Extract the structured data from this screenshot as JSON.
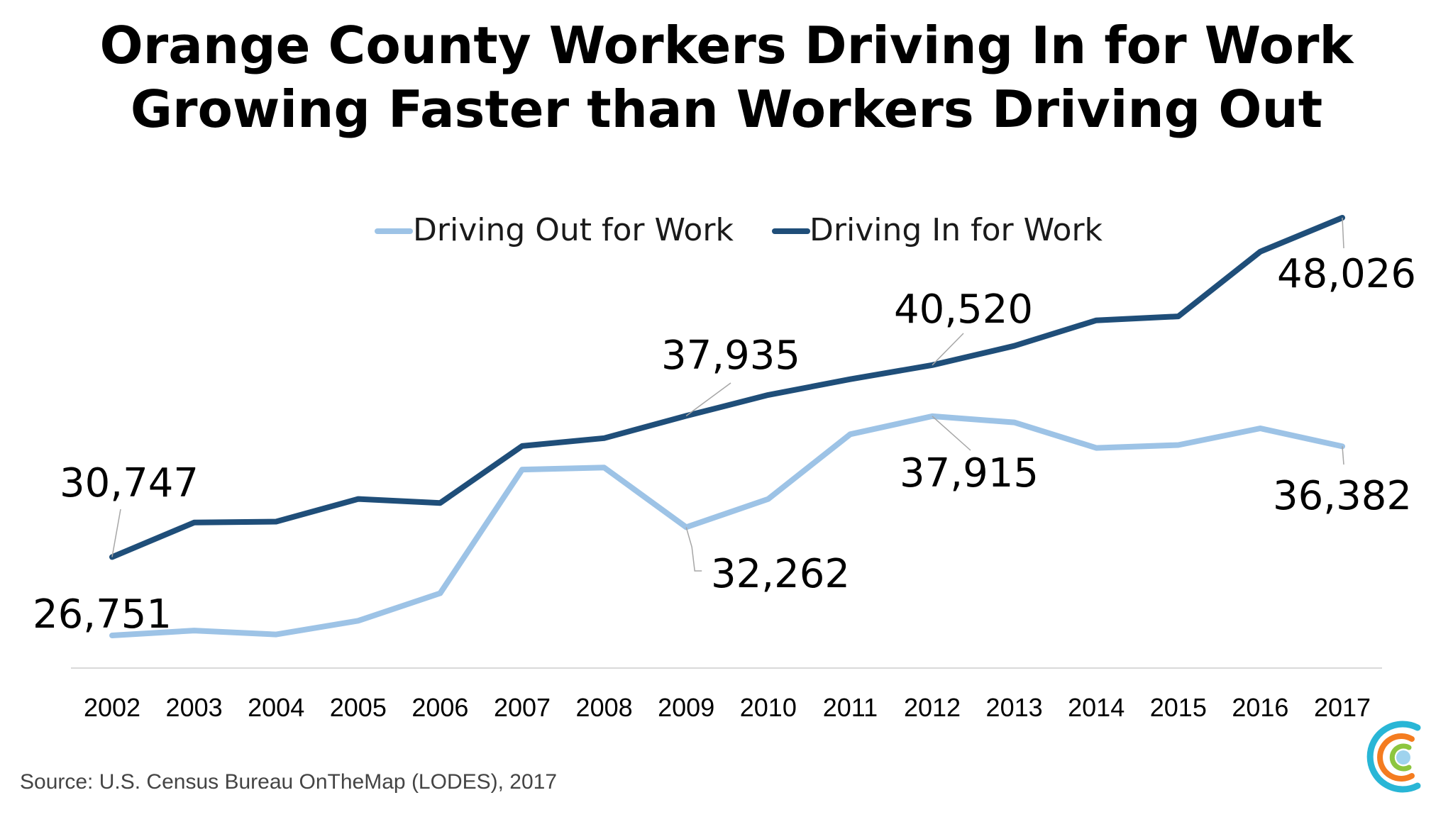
{
  "title_line1": "Orange County Workers Driving In for Work",
  "title_line2": "Growing Faster than Workers Driving Out",
  "source": "Source: U.S. Census Bureau OnTheMap (LODES), 2017",
  "colors": {
    "driving_out": "#9dc3e6",
    "driving_in": "#1f4e79",
    "axis": "#d9d9d9",
    "leader": "#a6a6a6"
  },
  "chart_data": {
    "type": "line",
    "categories": [
      "2002",
      "2003",
      "2004",
      "2005",
      "2006",
      "2007",
      "2008",
      "2009",
      "2010",
      "2011",
      "2012",
      "2013",
      "2014",
      "2015",
      "2016",
      "2017"
    ],
    "ylim": [
      22000,
      52000
    ],
    "grid": false,
    "legend_position": "top",
    "series": [
      {
        "name": "Driving Out for Work",
        "color": "#9dc3e6",
        "values": [
          26751,
          27000,
          26800,
          27500,
          28900,
          35200,
          35300,
          32262,
          33700,
          37000,
          37915,
          37600,
          36300,
          36450,
          37300,
          36382
        ]
      },
      {
        "name": "Driving In for Work",
        "color": "#1f4e79",
        "values": [
          30747,
          32500,
          32550,
          33700,
          33500,
          36400,
          36800,
          37935,
          39000,
          39800,
          40520,
          41500,
          42800,
          43000,
          46300,
          48026
        ]
      }
    ],
    "data_labels": [
      {
        "series": 1,
        "index": 0,
        "text": "30,747"
      },
      {
        "series": 1,
        "index": 7,
        "text": "37,935"
      },
      {
        "series": 1,
        "index": 10,
        "text": "40,520"
      },
      {
        "series": 1,
        "index": 15,
        "text": "48,026"
      },
      {
        "series": 0,
        "index": 0,
        "text": "26,751"
      },
      {
        "series": 0,
        "index": 7,
        "text": "32,262"
      },
      {
        "series": 0,
        "index": 10,
        "text": "37,915"
      },
      {
        "series": 0,
        "index": 15,
        "text": "36,382"
      }
    ]
  }
}
